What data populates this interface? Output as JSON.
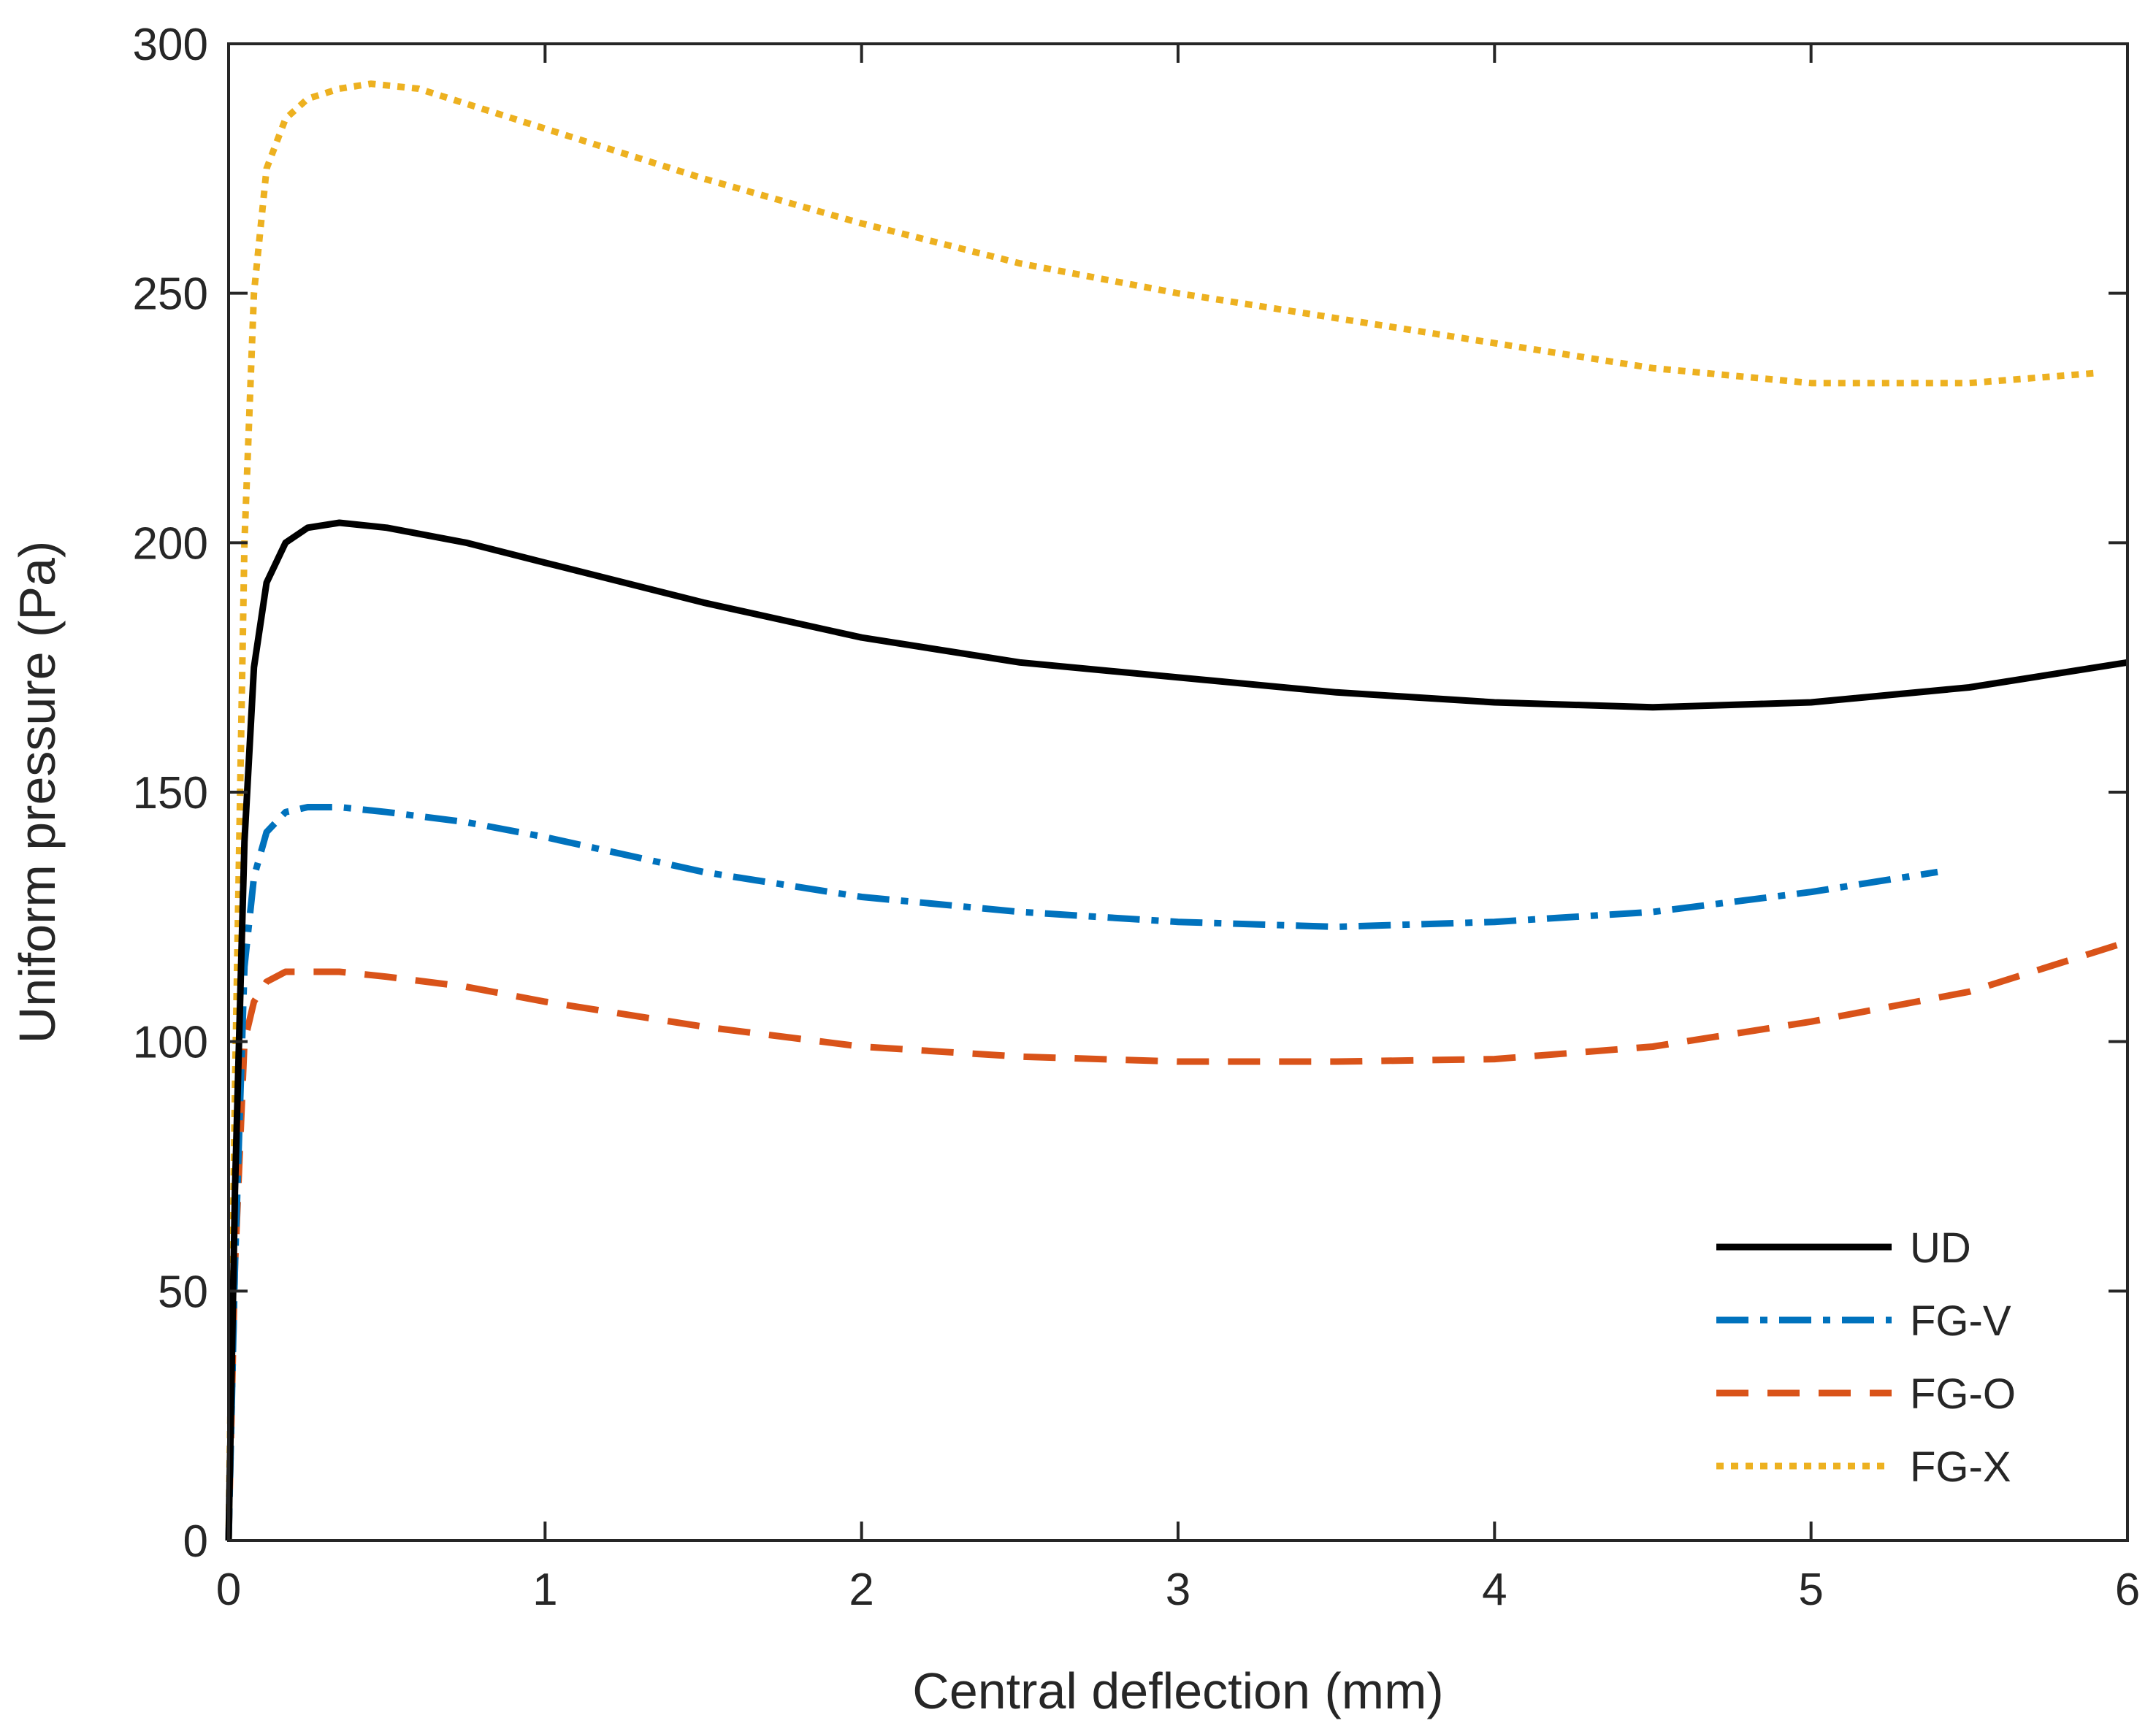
{
  "chart_data": {
    "type": "line",
    "title": "",
    "xlabel": "Central deflection (mm)",
    "ylabel": "Uniform pressure (Pa)",
    "xlim": [
      0,
      6
    ],
    "ylim": [
      0,
      300
    ],
    "xticks": [
      0,
      1,
      2,
      3,
      4,
      5,
      6
    ],
    "yticks": [
      0,
      50,
      100,
      150,
      200,
      250,
      300
    ],
    "grid": false,
    "box": true,
    "legend_position": "bottom-right",
    "series": [
      {
        "name": "UD",
        "color": "#000000",
        "style": "solid",
        "x": [
          0,
          0.02,
          0.05,
          0.08,
          0.12,
          0.18,
          0.25,
          0.35,
          0.5,
          0.75,
          1.0,
          1.5,
          2.0,
          2.5,
          3.0,
          3.5,
          4.0,
          4.5,
          5.0,
          5.5,
          6.0
        ],
        "y": [
          0,
          70,
          140,
          175,
          192,
          200,
          203,
          204,
          203,
          200,
          196,
          188,
          181,
          176,
          173,
          170,
          168,
          167,
          168,
          171,
          176
        ]
      },
      {
        "name": "FG-V",
        "color": "#0072BD",
        "style": "dashdot",
        "x": [
          0,
          0.02,
          0.05,
          0.08,
          0.12,
          0.18,
          0.25,
          0.35,
          0.5,
          0.75,
          1.0,
          1.5,
          2.0,
          2.5,
          3.0,
          3.5,
          4.0,
          4.5,
          5.0,
          5.4
        ],
        "y": [
          0,
          55,
          115,
          133,
          142,
          146,
          147,
          147,
          146,
          144,
          141,
          134,
          129,
          126,
          124,
          123,
          124,
          126,
          130,
          134
        ]
      },
      {
        "name": "FG-O",
        "color": "#D95319",
        "style": "dashed",
        "x": [
          0,
          0.02,
          0.05,
          0.08,
          0.12,
          0.18,
          0.25,
          0.35,
          0.5,
          0.75,
          1.0,
          1.5,
          2.0,
          2.5,
          3.0,
          3.5,
          4.0,
          4.5,
          5.0,
          5.5,
          6.0
        ],
        "y": [
          0,
          55,
          100,
          108,
          112,
          114,
          114,
          114,
          113,
          111,
          108,
          103,
          99,
          97,
          96,
          96,
          96.5,
          99,
          104,
          110,
          120
        ]
      },
      {
        "name": "FG-X",
        "color": "#EDB120",
        "style": "dotted",
        "x": [
          0,
          0.02,
          0.05,
          0.08,
          0.12,
          0.18,
          0.25,
          0.35,
          0.45,
          0.6,
          0.8,
          1.0,
          1.5,
          2.0,
          2.5,
          3.0,
          3.5,
          4.0,
          4.5,
          5.0,
          5.5,
          5.9
        ],
        "y": [
          0,
          90,
          200,
          250,
          275,
          285,
          289,
          291,
          292,
          291,
          287,
          283,
          273,
          264,
          256,
          250,
          245,
          240,
          235,
          232,
          232,
          234
        ]
      }
    ]
  }
}
